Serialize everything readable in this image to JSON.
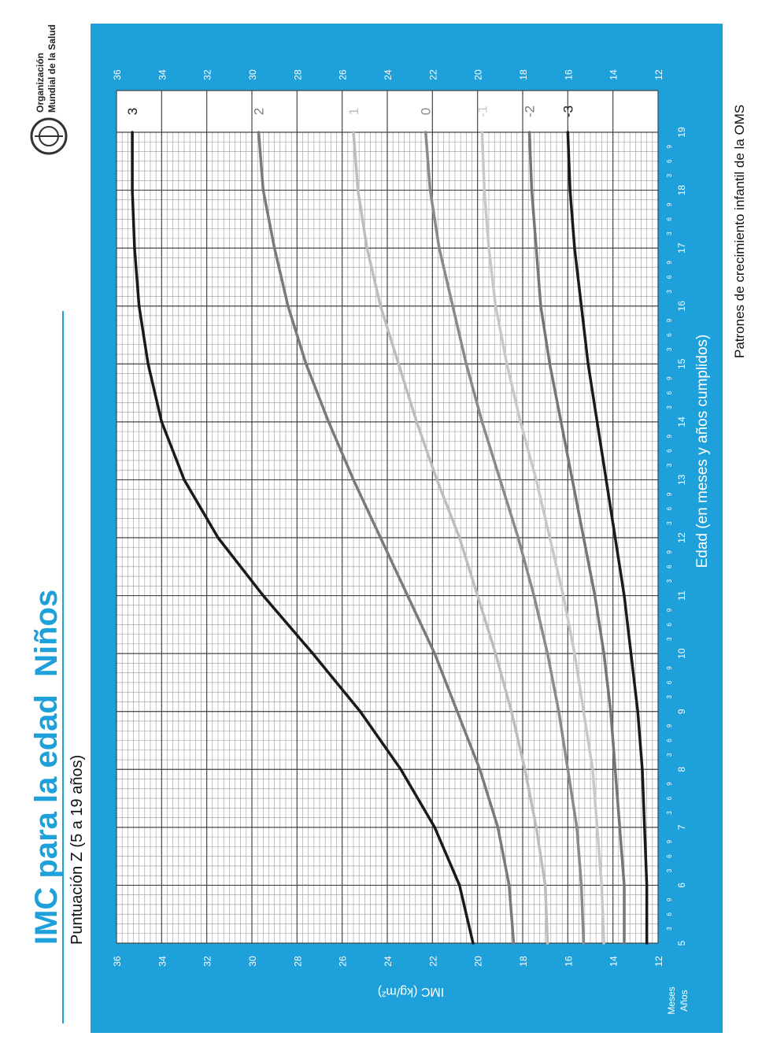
{
  "header": {
    "title": "IMC para la edad  Niños",
    "subtitle": "Puntuación Z (5 a 19 años)"
  },
  "logo": {
    "lines": [
      "Organización",
      "Mundial de la Salud"
    ]
  },
  "footer": "Patrones de crecimiento infantil de la OMS",
  "chart_data": {
    "type": "line",
    "xlabel": "Edad (en meses y años cumplidos)",
    "ylabel": "IMC (kg/m²)",
    "month_label": "Meses",
    "year_label": "Años",
    "x": [
      5,
      6,
      7,
      8,
      9,
      10,
      11,
      12,
      13,
      14,
      15,
      16,
      17,
      18,
      19
    ],
    "xlim": [
      5,
      19
    ],
    "xticks": [
      5,
      6,
      7,
      8,
      9,
      10,
      11,
      12,
      13,
      14,
      15,
      16,
      17,
      18,
      19
    ],
    "month_ticks": [
      3,
      6,
      9
    ],
    "ylim": [
      12,
      36
    ],
    "yticks": [
      12,
      14,
      16,
      18,
      20,
      22,
      24,
      26,
      28,
      30,
      32,
      34,
      36
    ],
    "grid": true,
    "series": [
      {
        "name": "3",
        "color": "#1a1a1a",
        "values": [
          20.2,
          20.8,
          21.9,
          23.4,
          25.2,
          27.3,
          29.5,
          31.5,
          33.0,
          34.0,
          34.6,
          35.0,
          35.2,
          35.3,
          35.3
        ]
      },
      {
        "name": "2",
        "color": "#7a7a7a",
        "values": [
          18.4,
          18.6,
          19.1,
          19.9,
          20.9,
          21.9,
          23.1,
          24.3,
          25.5,
          26.6,
          27.6,
          28.4,
          29.0,
          29.5,
          29.7
        ]
      },
      {
        "name": "1",
        "color": "#bdbdbd",
        "values": [
          16.9,
          17.0,
          17.4,
          17.9,
          18.5,
          19.2,
          20.0,
          20.8,
          21.8,
          22.7,
          23.5,
          24.3,
          24.9,
          25.3,
          25.5
        ]
      },
      {
        "name": "0",
        "color": "#8a8a8a",
        "values": [
          15.3,
          15.4,
          15.6,
          16.0,
          16.4,
          16.9,
          17.5,
          18.2,
          19.0,
          19.8,
          20.5,
          21.1,
          21.7,
          22.1,
          22.3
        ]
      },
      {
        "name": "-1",
        "color": "#c8c8c8",
        "values": [
          14.4,
          14.5,
          14.7,
          14.9,
          15.3,
          15.7,
          16.2,
          16.8,
          17.4,
          18.1,
          18.7,
          19.2,
          19.5,
          19.7,
          19.8
        ]
      },
      {
        "name": "-2",
        "color": "#767676",
        "values": [
          13.5,
          13.5,
          13.7,
          13.9,
          14.1,
          14.4,
          14.8,
          15.3,
          15.8,
          16.3,
          16.8,
          17.2,
          17.4,
          17.6,
          17.7
        ]
      },
      {
        "name": "-3",
        "color": "#1a1a1a",
        "values": [
          12.5,
          12.5,
          12.6,
          12.7,
          12.9,
          13.2,
          13.5,
          13.9,
          14.3,
          14.7,
          15.1,
          15.4,
          15.7,
          15.9,
          16.0
        ]
      }
    ]
  }
}
